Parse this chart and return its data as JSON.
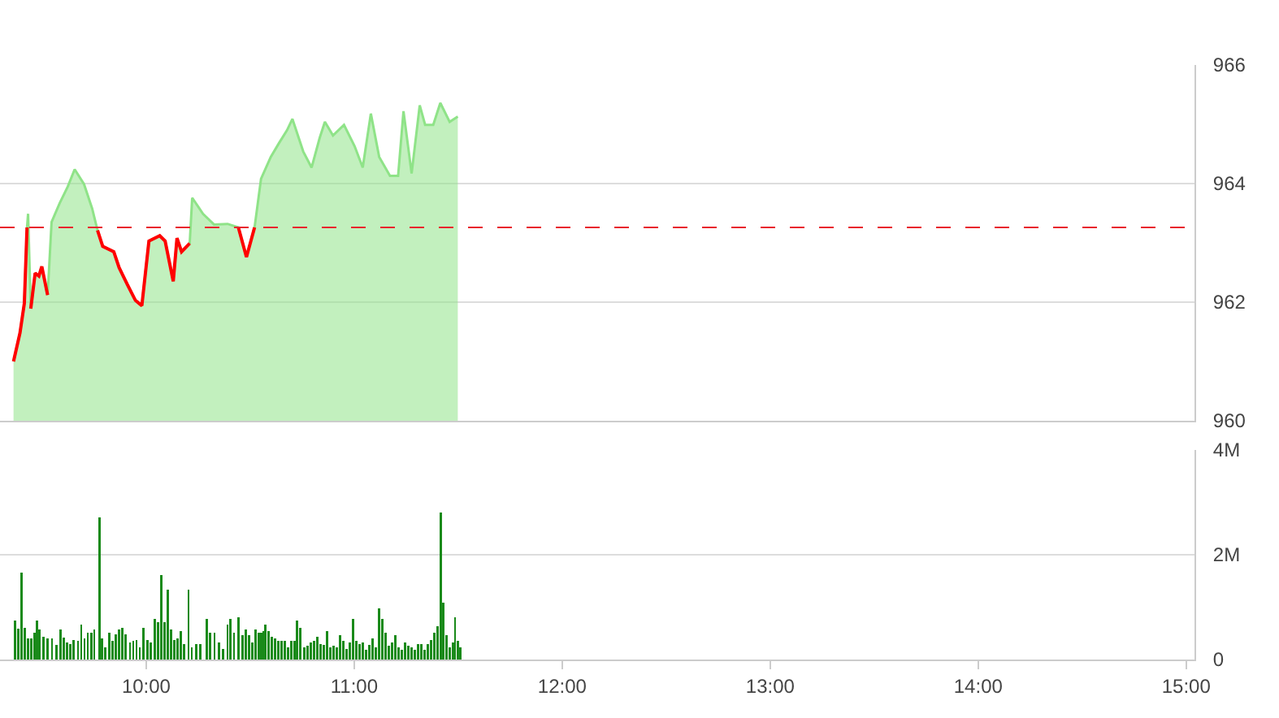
{
  "chart_data": [
    {
      "type": "area",
      "x": [
        9.362,
        9.393,
        9.414,
        9.427,
        9.432,
        9.445,
        9.466,
        9.484,
        9.498,
        9.526,
        9.545,
        9.584,
        9.623,
        9.656,
        9.701,
        9.74,
        9.766,
        9.791,
        9.844,
        9.87,
        9.909,
        9.948,
        9.979,
        10.013,
        10.065,
        10.091,
        10.13,
        10.148,
        10.17,
        10.209,
        10.221,
        10.273,
        10.326,
        10.391,
        10.443,
        10.482,
        10.521,
        10.552,
        10.599,
        10.638,
        10.677,
        10.703,
        10.755,
        10.795,
        10.834,
        10.859,
        10.898,
        10.951,
        11.002,
        11.041,
        11.08,
        11.12,
        11.172,
        11.211,
        11.237,
        11.276,
        11.315,
        11.341,
        11.38,
        11.414,
        11.459,
        11.498
      ],
      "series": [
        {
          "color": "#8fe388",
          "values": [
            961.0,
            961.48,
            961.98,
            963.26,
            963.49,
            961.89,
            962.49,
            962.44,
            962.6,
            962.12,
            963.35,
            963.67,
            963.95,
            964.24,
            963.99,
            963.58,
            963.21,
            962.94,
            962.85,
            962.58,
            962.3,
            962.03,
            961.94,
            963.03,
            963.12,
            963.03,
            962.35,
            963.08,
            962.85,
            962.99,
            963.76,
            963.49,
            963.31,
            963.32,
            963.26,
            962.76,
            963.26,
            964.08,
            964.45,
            964.68,
            964.9,
            965.09,
            964.54,
            964.27,
            964.77,
            965.04,
            964.81,
            964.99,
            964.63,
            964.27,
            965.18,
            964.45,
            964.13,
            964.13,
            965.22,
            964.17,
            965.32,
            964.99,
            964.99,
            965.36,
            965.04,
            965.13
          ]
        },
        {
          "type": "line",
          "color": "#ff0000",
          "values": [
            961.0,
            961.48,
            961.98,
            963.26,
            null,
            961.89,
            962.49,
            962.44,
            962.6,
            962.12,
            null,
            null,
            null,
            null,
            null,
            null,
            963.21,
            962.94,
            962.85,
            962.58,
            962.3,
            962.03,
            961.94,
            963.03,
            963.12,
            963.03,
            962.35,
            963.08,
            962.85,
            962.99,
            null,
            null,
            null,
            null,
            963.26,
            962.76,
            963.26,
            null,
            null,
            null,
            null,
            null,
            null,
            null,
            null,
            null,
            null,
            null,
            null,
            null,
            null,
            null,
            null,
            null,
            null,
            null,
            null,
            null,
            null,
            null,
            null,
            null
          ]
        }
      ],
      "xlim": [
        9.297,
        15.04
      ],
      "ylim": [
        960,
        966
      ],
      "yticks": [
        960,
        962,
        964,
        966
      ],
      "ref_lines": [
        {
          "axis": "y",
          "value": 963.26,
          "color": "#e8232d",
          "line_style": "dashed"
        }
      ],
      "grid": "y",
      "legend": false,
      "tick_labels": "y",
      "line_style": "solid"
    },
    {
      "type": "bar",
      "color": "#1a8a1a",
      "x": [
        9.37,
        9.385,
        9.401,
        9.417,
        9.432,
        9.448,
        9.463,
        9.474,
        9.485,
        9.506,
        9.526,
        9.547,
        9.568,
        9.588,
        9.604,
        9.62,
        9.635,
        9.651,
        9.672,
        9.688,
        9.703,
        9.719,
        9.735,
        9.75,
        9.776,
        9.787,
        9.802,
        9.823,
        9.838,
        9.854,
        9.87,
        9.885,
        9.901,
        9.922,
        9.938,
        9.953,
        9.969,
        9.985,
        10.006,
        10.021,
        10.041,
        10.057,
        10.073,
        10.088,
        10.104,
        10.12,
        10.135,
        10.151,
        10.167,
        10.182,
        10.203,
        10.219,
        10.24,
        10.26,
        10.291,
        10.307,
        10.328,
        10.349,
        10.37,
        10.391,
        10.406,
        10.422,
        10.443,
        10.463,
        10.479,
        10.495,
        10.51,
        10.526,
        10.541,
        10.552,
        10.563,
        10.573,
        10.588,
        10.604,
        10.62,
        10.635,
        10.651,
        10.667,
        10.682,
        10.698,
        10.713,
        10.724,
        10.74,
        10.76,
        10.776,
        10.791,
        10.807,
        10.823,
        10.838,
        10.854,
        10.87,
        10.885,
        10.901,
        10.916,
        10.932,
        10.948,
        10.963,
        10.979,
        10.995,
        11.01,
        11.026,
        11.041,
        11.057,
        11.073,
        11.088,
        11.104,
        11.12,
        11.135,
        11.151,
        11.166,
        11.182,
        11.198,
        11.213,
        11.229,
        11.245,
        11.26,
        11.276,
        11.291,
        11.307,
        11.323,
        11.338,
        11.354,
        11.37,
        11.385,
        11.401,
        11.416,
        11.427,
        11.443,
        11.459,
        11.474,
        11.485,
        11.5,
        11.51
      ],
      "values": [
        0.74,
        0.59,
        1.66,
        0.61,
        0.4,
        0.4,
        0.51,
        0.74,
        0.57,
        0.43,
        0.4,
        0.41,
        0.28,
        0.57,
        0.42,
        0.33,
        0.3,
        0.37,
        0.36,
        0.67,
        0.4,
        0.51,
        0.51,
        0.57,
        2.72,
        0.41,
        0.23,
        0.51,
        0.36,
        0.48,
        0.57,
        0.61,
        0.48,
        0.33,
        0.36,
        0.37,
        0.23,
        0.61,
        0.37,
        0.33,
        0.77,
        0.71,
        1.61,
        0.71,
        1.34,
        0.57,
        0.37,
        0.4,
        0.54,
        0.3,
        1.34,
        0.23,
        0.3,
        0.3,
        0.77,
        0.51,
        0.51,
        0.33,
        0.2,
        0.67,
        0.77,
        0.51,
        0.8,
        0.47,
        0.57,
        0.47,
        0.33,
        0.57,
        0.51,
        0.51,
        0.54,
        0.67,
        0.54,
        0.43,
        0.4,
        0.36,
        0.36,
        0.36,
        0.23,
        0.36,
        0.36,
        0.74,
        0.61,
        0.23,
        0.26,
        0.33,
        0.36,
        0.43,
        0.3,
        0.28,
        0.54,
        0.23,
        0.26,
        0.23,
        0.47,
        0.36,
        0.2,
        0.33,
        0.77,
        0.36,
        0.3,
        0.33,
        0.19,
        0.28,
        0.4,
        0.23,
        0.98,
        0.77,
        0.51,
        0.26,
        0.33,
        0.47,
        0.23,
        0.19,
        0.33,
        0.26,
        0.23,
        0.19,
        0.3,
        0.3,
        0.19,
        0.3,
        0.37,
        0.51,
        0.64,
        2.8,
        1.09,
        0.47,
        0.23,
        0.33,
        0.8,
        0.36,
        0.23
      ],
      "xlim": [
        9.297,
        15.04
      ],
      "xticks": [
        {
          "value": 10,
          "label": "10:00"
        },
        {
          "value": 11,
          "label": "11:00"
        },
        {
          "value": 12,
          "label": "12:00"
        },
        {
          "value": 13,
          "label": "13:00"
        },
        {
          "value": 14,
          "label": "14:00"
        },
        {
          "value": 15,
          "label": "15:00"
        }
      ],
      "ylim": [
        0,
        4
      ],
      "yticks": [
        0,
        {
          "value": 2,
          "label": "2M"
        },
        {
          "value": 4,
          "label": "4M"
        }
      ],
      "grid": "y",
      "legend": false
    }
  ]
}
